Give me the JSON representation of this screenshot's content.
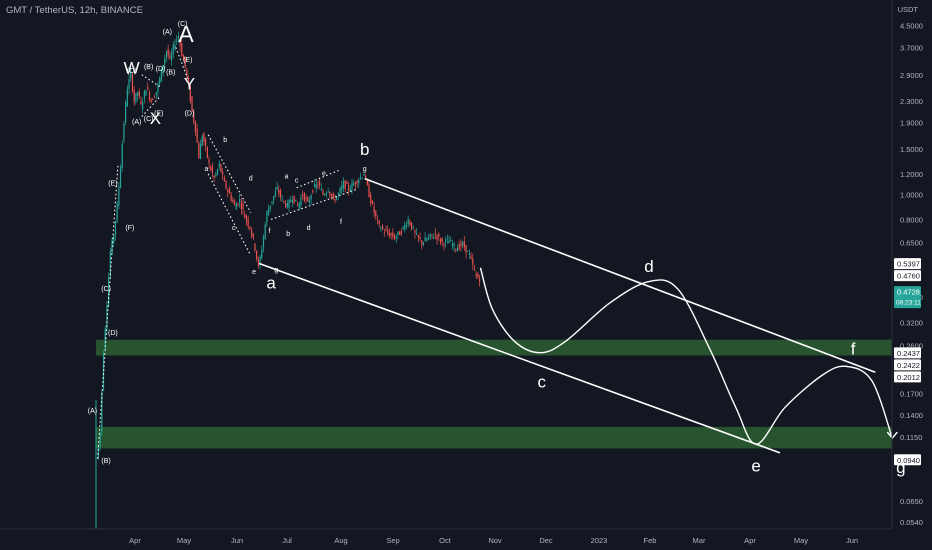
{
  "header": {
    "symbol_title": "GMT / TetherUS, 12h, BINANCE",
    "currency": "USDT"
  },
  "colors": {
    "background": "#131722",
    "up": "#26a69a",
    "down": "#ef5350",
    "annotation": "#ffffff",
    "zone": "#2f6a34",
    "current_price_badge": "#26a69a"
  },
  "chart_data": {
    "type": "candlestick",
    "scale": "log",
    "y_ticks": [
      "4.5000",
      "3.7000",
      "2.9000",
      "2.3000",
      "1.9000",
      "1.5000",
      "1.2000",
      "1.0000",
      "0.8000",
      "0.6500",
      "0.4000",
      "0.3200",
      "0.2600",
      "0.1700",
      "0.1400",
      "0.1150",
      "0.0650",
      "0.0540"
    ],
    "y_tick_values": [
      4.5,
      3.7,
      2.9,
      2.3,
      1.9,
      1.5,
      1.2,
      1.0,
      0.8,
      0.65,
      0.4,
      0.32,
      0.26,
      0.17,
      0.14,
      0.115,
      0.065,
      0.054
    ],
    "x_labels": [
      "Apr",
      "May",
      "Jun",
      "Jul",
      "Aug",
      "Sep",
      "Oct",
      "Nov",
      "Dec",
      "2023",
      "Feb",
      "Mar",
      "Apr",
      "May",
      "Jun"
    ],
    "price_labels": [
      {
        "text": "0.5397",
        "value": 0.5397,
        "style": "white"
      },
      {
        "text": "0.4760",
        "value": 0.476,
        "style": "white"
      },
      {
        "text": "0.4728",
        "value": 0.4728,
        "style": "current",
        "sub": "08:23:11"
      },
      {
        "text": "0.2437",
        "value": 0.2437,
        "style": "white"
      },
      {
        "text": "0.2422",
        "value": 0.2422,
        "style": "white"
      },
      {
        "text": "0.2012",
        "value": 0.2012,
        "style": "white"
      },
      {
        "text": "0.0940",
        "value": 0.094,
        "style": "white"
      }
    ],
    "zones": [
      {
        "from": 0.238,
        "to": 0.274
      },
      {
        "from": 0.104,
        "to": 0.126
      }
    ],
    "price_path": [
      [
        "2022-03-10",
        0.095
      ],
      [
        "2022-03-12",
        0.12
      ],
      [
        "2022-03-14",
        0.25
      ],
      [
        "2022-03-16",
        0.38
      ],
      [
        "2022-03-18",
        0.6
      ],
      [
        "2022-03-20",
        0.7
      ],
      [
        "2022-03-22",
        0.9
      ],
      [
        "2022-03-24",
        1.3
      ],
      [
        "2022-03-26",
        1.9
      ],
      [
        "2022-03-28",
        2.6
      ],
      [
        "2022-03-30",
        2.9
      ],
      [
        "2022-04-01",
        2.3
      ],
      [
        "2022-04-03",
        2.5
      ],
      [
        "2022-04-05",
        2.2
      ],
      [
        "2022-04-08",
        2.6
      ],
      [
        "2022-04-11",
        2.3
      ],
      [
        "2022-04-14",
        2.5
      ],
      [
        "2022-04-16",
        2.8
      ],
      [
        "2022-04-18",
        3.2
      ],
      [
        "2022-04-20",
        3.6
      ],
      [
        "2022-04-22",
        3.3
      ],
      [
        "2022-04-25",
        3.9
      ],
      [
        "2022-04-27",
        4.1
      ],
      [
        "2022-04-29",
        3.5
      ],
      [
        "2022-05-01",
        3.1
      ],
      [
        "2022-05-03",
        2.6
      ],
      [
        "2022-05-05",
        2.1
      ],
      [
        "2022-05-07",
        1.8
      ],
      [
        "2022-05-09",
        1.4
      ],
      [
        "2022-05-11",
        1.7
      ],
      [
        "2022-05-13",
        1.5
      ],
      [
        "2022-05-15",
        1.3
      ],
      [
        "2022-05-18",
        1.15
      ],
      [
        "2022-05-21",
        1.3
      ],
      [
        "2022-05-24",
        1.1
      ],
      [
        "2022-05-27",
        1.0
      ],
      [
        "2022-05-30",
        0.9
      ],
      [
        "2022-06-02",
        0.95
      ],
      [
        "2022-06-05",
        0.82
      ],
      [
        "2022-06-08",
        0.75
      ],
      [
        "2022-06-11",
        0.62
      ],
      [
        "2022-06-13",
        0.52
      ],
      [
        "2022-06-15",
        0.62
      ],
      [
        "2022-06-18",
        0.85
      ],
      [
        "2022-06-21",
        0.95
      ],
      [
        "2022-06-24",
        1.05
      ],
      [
        "2022-06-27",
        0.95
      ],
      [
        "2022-06-30",
        0.9
      ],
      [
        "2022-07-03",
        0.98
      ],
      [
        "2022-07-06",
        0.9
      ],
      [
        "2022-07-09",
        1.0
      ],
      [
        "2022-07-12",
        0.92
      ],
      [
        "2022-07-15",
        1.05
      ],
      [
        "2022-07-18",
        1.1
      ],
      [
        "2022-07-21",
        1.0
      ],
      [
        "2022-07-24",
        1.05
      ],
      [
        "2022-07-27",
        0.95
      ],
      [
        "2022-07-30",
        1.0
      ],
      [
        "2022-08-02",
        1.1
      ],
      [
        "2022-08-05",
        1.05
      ],
      [
        "2022-08-08",
        1.1
      ],
      [
        "2022-08-11",
        1.15
      ],
      [
        "2022-08-14",
        1.2
      ],
      [
        "2022-08-17",
        1.0
      ],
      [
        "2022-08-20",
        0.85
      ],
      [
        "2022-08-23",
        0.75
      ],
      [
        "2022-08-26",
        0.72
      ],
      [
        "2022-08-29",
        0.7
      ],
      [
        "2022-09-01",
        0.68
      ],
      [
        "2022-09-05",
        0.72
      ],
      [
        "2022-09-09",
        0.8
      ],
      [
        "2022-09-13",
        0.7
      ],
      [
        "2022-09-17",
        0.65
      ],
      [
        "2022-09-21",
        0.68
      ],
      [
        "2022-09-25",
        0.7
      ],
      [
        "2022-09-29",
        0.65
      ],
      [
        "2022-10-03",
        0.66
      ],
      [
        "2022-10-07",
        0.62
      ],
      [
        "2022-10-11",
        0.64
      ],
      [
        "2022-10-15",
        0.58
      ],
      [
        "2022-10-19",
        0.48
      ],
      [
        "2022-10-21",
        0.4728
      ]
    ],
    "channel_lines": [
      {
        "from": [
          "2022-08-14",
          1.15
        ],
        "to": [
          "2023-06-10",
          0.205
        ]
      },
      {
        "from": [
          "2022-06-13",
          0.54
        ],
        "to": [
          "2023-04-15",
          0.1
        ]
      }
    ],
    "triangle_lines": [
      {
        "from": [
          "2022-06-20",
          0.8
        ],
        "to": [
          "2022-08-10",
          1.05
        ]
      },
      {
        "from": [
          "2022-07-05",
          1.06
        ],
        "to": [
          "2022-07-30",
          1.24
        ]
      },
      {
        "from": [
          "2022-03-10",
          0.095
        ],
        "to": [
          "2022-03-22",
          1.3
        ]
      },
      {
        "from": [
          "2022-04-05",
          2.0
        ],
        "to": [
          "2022-04-16",
          2.4
        ]
      },
      {
        "from": [
          "2022-04-05",
          2.9
        ],
        "to": [
          "2022-04-16",
          2.6
        ]
      },
      {
        "from": [
          "2022-04-25",
          3.7
        ],
        "to": [
          "2022-05-02",
          2.8
        ]
      },
      {
        "from": [
          "2022-05-14",
          1.7
        ],
        "to": [
          "2022-06-08",
          0.85
        ]
      },
      {
        "from": [
          "2022-05-14",
          1.2
        ],
        "to": [
          "2022-06-08",
          0.58
        ]
      }
    ],
    "projection_path": [
      [
        "2022-10-21",
        0.52
      ],
      [
        "2022-10-28",
        0.36
      ],
      [
        "2022-11-10",
        0.27
      ],
      [
        "2022-11-25",
        0.244
      ],
      [
        "2022-12-10",
        0.27
      ],
      [
        "2023-01-05",
        0.38
      ],
      [
        "2023-01-28",
        0.46
      ],
      [
        "2023-02-14",
        0.43
      ],
      [
        "2023-03-05",
        0.25
      ],
      [
        "2023-03-20",
        0.15
      ],
      [
        "2023-04-01",
        0.108
      ],
      [
        "2023-04-18",
        0.15
      ],
      [
        "2023-05-10",
        0.2
      ],
      [
        "2023-05-24",
        0.216
      ],
      [
        "2023-06-08",
        0.19
      ],
      [
        "2023-06-20",
        0.114
      ]
    ],
    "wave_labels": [
      {
        "text": "A",
        "date": "2022-05-01",
        "value": 4.1,
        "size": "large"
      },
      {
        "text": "W",
        "date": "2022-03-30",
        "value": 3.05,
        "size": "medium"
      },
      {
        "text": "X",
        "date": "2022-04-13",
        "value": 1.95,
        "size": "medium"
      },
      {
        "text": "Y",
        "date": "2022-05-03",
        "value": 2.65,
        "size": "medium"
      },
      {
        "text": "(A)",
        "date": "2022-04-20",
        "value": 4.25,
        "size": "small"
      },
      {
        "text": "(C)",
        "date": "2022-04-29",
        "value": 4.55,
        "size": "small"
      },
      {
        "text": "(E)",
        "date": "2022-05-02",
        "value": 3.3,
        "size": "small"
      },
      {
        "text": "(B)",
        "date": "2022-04-09",
        "value": 3.1,
        "size": "small"
      },
      {
        "text": "(D)",
        "date": "2022-04-16",
        "value": 3.05,
        "size": "small"
      },
      {
        "text": "(B)",
        "date": "2022-04-22",
        "value": 2.95,
        "size": "small"
      },
      {
        "text": "(C)",
        "date": "2022-03-30",
        "value": 3.0,
        "size": "small"
      },
      {
        "text": "(A)",
        "date": "2022-04-02",
        "value": 1.9,
        "size": "small"
      },
      {
        "text": "(C)",
        "date": "2022-04-09",
        "value": 1.95,
        "size": "small"
      },
      {
        "text": "(E)",
        "date": "2022-04-15",
        "value": 2.05,
        "size": "small"
      },
      {
        "text": "(D)",
        "date": "2022-05-03",
        "value": 2.05,
        "size": "small"
      },
      {
        "text": "(E)",
        "date": "2022-03-19",
        "value": 1.1,
        "size": "small"
      },
      {
        "text": "(F)",
        "date": "2022-03-29",
        "value": 0.74,
        "size": "small"
      },
      {
        "text": "(C)",
        "date": "2022-03-15",
        "value": 0.43,
        "size": "small"
      },
      {
        "text": "(D)",
        "date": "2022-03-19",
        "value": 0.29,
        "size": "small"
      },
      {
        "text": "(A)",
        "date": "2022-03-07",
        "value": 0.145,
        "size": "small"
      },
      {
        "text": "(B)",
        "date": "2022-03-15",
        "value": 0.093,
        "size": "small"
      },
      {
        "text": "a",
        "date": "2022-05-13",
        "value": 1.25,
        "size": "small"
      },
      {
        "text": "b",
        "date": "2022-05-24",
        "value": 1.62,
        "size": "small"
      },
      {
        "text": "c",
        "date": "2022-05-29",
        "value": 0.74,
        "size": "small"
      },
      {
        "text": "d",
        "date": "2022-06-08",
        "value": 1.15,
        "size": "small"
      },
      {
        "text": "e",
        "date": "2022-06-10",
        "value": 0.5,
        "size": "small"
      },
      {
        "text": "f",
        "date": "2022-06-19",
        "value": 0.72,
        "size": "small"
      },
      {
        "text": "g",
        "date": "2022-06-23",
        "value": 0.51,
        "size": "small"
      },
      {
        "text": "a",
        "date": "2022-06-20",
        "value": 0.45,
        "size": "medium"
      },
      {
        "text": "a",
        "date": "2022-06-29",
        "value": 1.17,
        "size": "small"
      },
      {
        "text": "b",
        "date": "2022-06-30",
        "value": 0.7,
        "size": "small"
      },
      {
        "text": "c",
        "date": "2022-07-05",
        "value": 1.13,
        "size": "small"
      },
      {
        "text": "d",
        "date": "2022-07-12",
        "value": 0.74,
        "size": "small"
      },
      {
        "text": "e",
        "date": "2022-07-21",
        "value": 1.2,
        "size": "small"
      },
      {
        "text": "f",
        "date": "2022-07-31",
        "value": 0.78,
        "size": "small"
      },
      {
        "text": "b",
        "date": "2022-08-14",
        "value": 1.48,
        "size": "medium"
      },
      {
        "text": "g",
        "date": "2022-08-14",
        "value": 1.25,
        "size": "small"
      },
      {
        "text": "c",
        "date": "2022-11-26",
        "value": 0.186,
        "size": "medium"
      },
      {
        "text": "d",
        "date": "2023-01-28",
        "value": 0.52,
        "size": "medium"
      },
      {
        "text": "e",
        "date": "2023-04-01",
        "value": 0.088,
        "size": "medium"
      },
      {
        "text": "f",
        "date": "2023-05-28",
        "value": 0.25,
        "size": "medium"
      },
      {
        "text": "g",
        "date": "2023-06-25",
        "value": 0.087,
        "size": "medium"
      }
    ]
  }
}
